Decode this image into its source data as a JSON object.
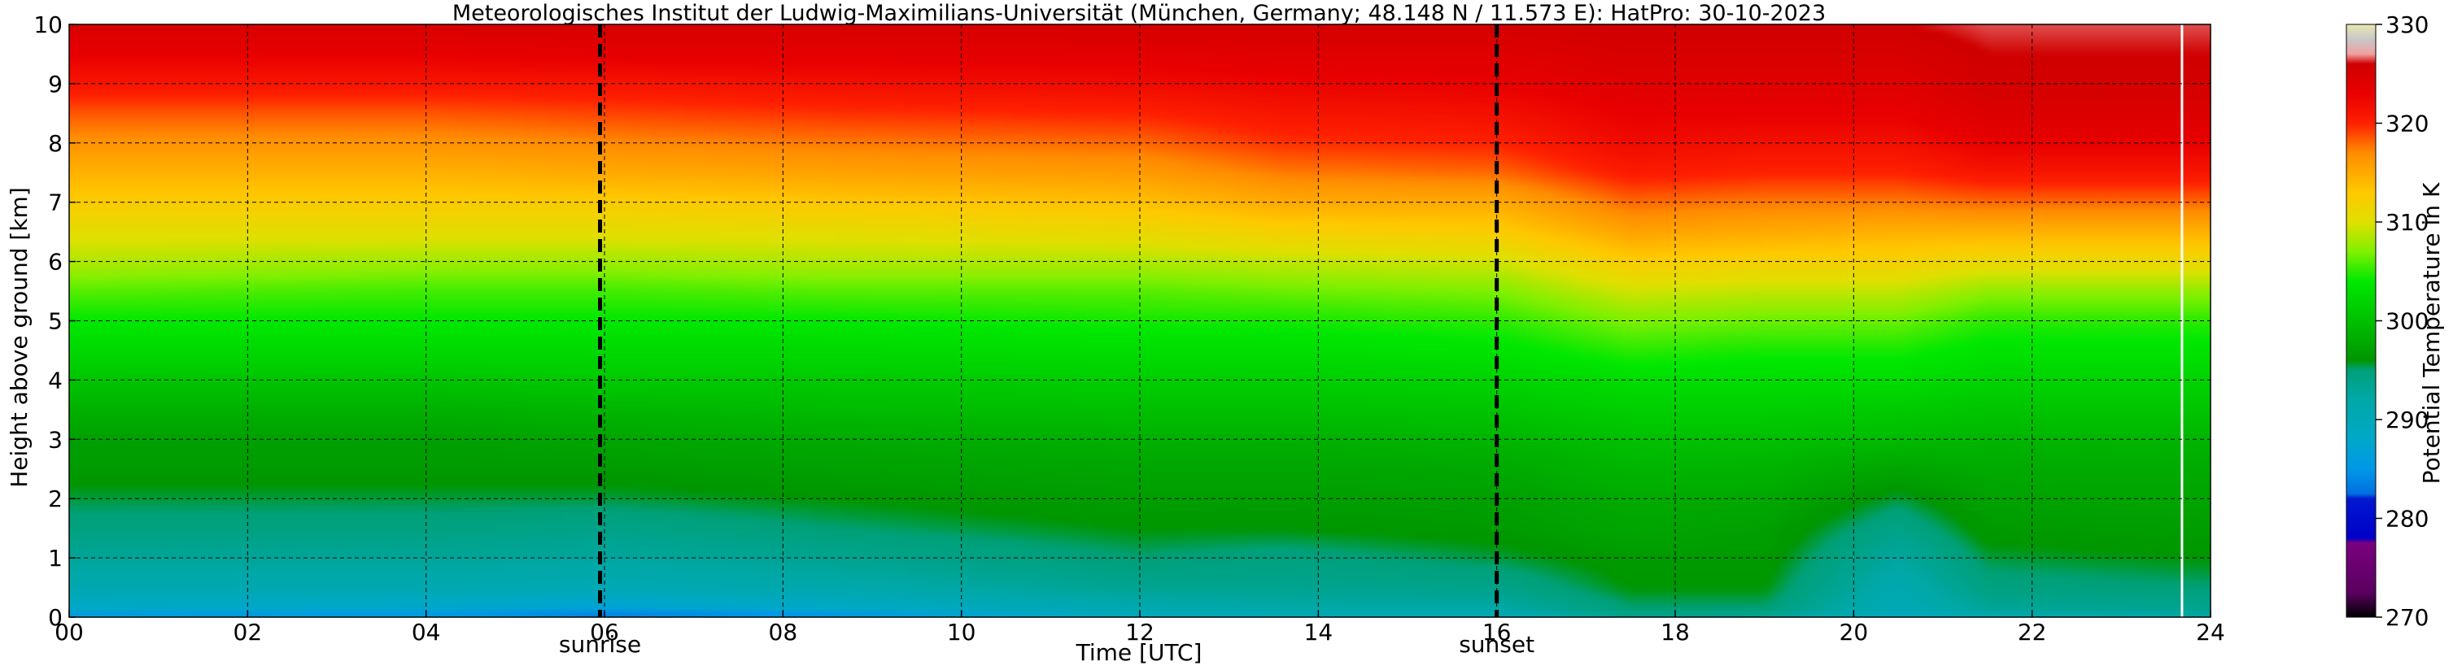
{
  "chart_data": {
    "type": "heatmap",
    "title": "Meteorologisches Institut der Ludwig-Maximilians-Universität (München, Germany; 48.148 N / 11.573 E):    HatPro: 30-10-2023",
    "xlabel": "Time [UTC]",
    "ylabel": "Height above ground [km]",
    "xlim": [
      0,
      24
    ],
    "ylim": [
      0,
      10
    ],
    "x_ticks": [
      0,
      2,
      4,
      6,
      8,
      10,
      12,
      14,
      16,
      18,
      20,
      22,
      24
    ],
    "x_tick_labels": [
      "00",
      "02",
      "04",
      "06",
      "08",
      "10",
      "12",
      "14",
      "16",
      "18",
      "20",
      "22",
      "24"
    ],
    "y_ticks": [
      0,
      1,
      2,
      3,
      4,
      5,
      6,
      7,
      8,
      9,
      10
    ],
    "y_tick_labels": [
      "0",
      "1",
      "2",
      "3",
      "4",
      "5",
      "6",
      "7",
      "8",
      "9",
      "10"
    ],
    "grid": true,
    "colorbar": {
      "label": "Potential Temperature in K",
      "min": 270,
      "max": 330,
      "ticks": [
        270,
        280,
        290,
        300,
        310,
        320,
        330
      ],
      "tick_labels": [
        "270",
        "280",
        "290",
        "300",
        "310",
        "320",
        "330"
      ],
      "stops": [
        {
          "value": 270,
          "color": "#000000"
        },
        {
          "value": 272.5,
          "color": "#5a0060"
        },
        {
          "value": 277.5,
          "color": "#7a0080"
        },
        {
          "value": 278,
          "color": "#0000c8"
        },
        {
          "value": 282,
          "color": "#0018d0"
        },
        {
          "value": 282.5,
          "color": "#0070e0"
        },
        {
          "value": 285,
          "color": "#0098e8"
        },
        {
          "value": 288,
          "color": "#00a8c8"
        },
        {
          "value": 292,
          "color": "#00a8a8"
        },
        {
          "value": 295,
          "color": "#00a078"
        },
        {
          "value": 296,
          "color": "#009600"
        },
        {
          "value": 300,
          "color": "#00c000"
        },
        {
          "value": 304,
          "color": "#00e800"
        },
        {
          "value": 307,
          "color": "#80f000"
        },
        {
          "value": 310,
          "color": "#e0e000"
        },
        {
          "value": 313,
          "color": "#ffc800"
        },
        {
          "value": 317,
          "color": "#ff8c00"
        },
        {
          "value": 320,
          "color": "#ff2000"
        },
        {
          "value": 323,
          "color": "#e80000"
        },
        {
          "value": 326,
          "color": "#d00000"
        },
        {
          "value": 327,
          "color": "#f0a0a0"
        },
        {
          "value": 328.5,
          "color": "#c8c8c8"
        },
        {
          "value": 330,
          "color": "#e8e8b0"
        }
      ]
    },
    "events": [
      {
        "label": "sunrise",
        "time": 5.95
      },
      {
        "label": "sunset",
        "time": 16.0
      }
    ],
    "no_data_time": 23.68,
    "field": {
      "description": "Potential temperature (K) by time (h UTC) and height (km)",
      "profile_heights": [
        0,
        0.15,
        0.5,
        1.0,
        1.5,
        2.0,
        2.5,
        3.0,
        3.5,
        4.0,
        4.5,
        5.0,
        5.5,
        6.0,
        6.5,
        7.0,
        7.5,
        8.0,
        8.5,
        9.0,
        9.5,
        10.0
      ],
      "profiles": [
        {
          "time": 0,
          "theta": [
            285,
            288,
            291,
            293,
            294.5,
            295.5,
            296.5,
            297,
            298.5,
            300.5,
            302.5,
            304,
            306,
            308.5,
            310.5,
            312.5,
            314.5,
            316.5,
            318.5,
            321,
            323,
            325
          ]
        },
        {
          "time": 4,
          "theta": [
            284.5,
            287.5,
            291,
            293,
            294.5,
            295.5,
            296.5,
            297,
            298.5,
            300.5,
            302.5,
            304,
            305.5,
            308,
            310.5,
            312.5,
            314.5,
            316.5,
            318.5,
            321,
            323,
            325
          ]
        },
        {
          "time": 6,
          "theta": [
            282.5,
            286.5,
            290.5,
            292.5,
            294,
            295.5,
            296.5,
            297.5,
            299,
            301,
            302.5,
            304,
            305.5,
            308,
            310.5,
            312.5,
            315,
            317,
            319,
            321,
            323.5,
            325
          ]
        },
        {
          "time": 8.5,
          "theta": [
            284,
            288,
            291.5,
            293.5,
            295,
            296,
            297,
            298,
            299.5,
            301,
            302.5,
            304,
            306,
            308.5,
            310.5,
            313,
            315.5,
            317.5,
            319.5,
            321.5,
            323.5,
            325
          ]
        },
        {
          "time": 12,
          "theta": [
            289,
            291,
            293.5,
            295,
            296,
            296.8,
            297.5,
            298.5,
            300,
            301.5,
            303,
            304.5,
            306,
            308.5,
            311,
            313.5,
            316,
            318,
            320,
            322,
            323.5,
            325.5
          ]
        },
        {
          "time": 13.6,
          "theta": [
            290,
            292,
            293.5,
            294.5,
            296,
            296.8,
            297.5,
            298.5,
            300,
            301.5,
            303,
            304.5,
            306.5,
            309,
            312,
            315,
            317.5,
            319.5,
            321,
            322.5,
            324,
            325.5
          ]
        },
        {
          "time": 16,
          "theta": [
            290,
            292,
            294,
            295.5,
            296.5,
            297,
            297.8,
            299,
            300.5,
            302,
            303.5,
            305,
            307,
            309.5,
            312.5,
            315,
            318,
            320,
            321.5,
            323,
            324,
            325.5
          ]
        },
        {
          "time": 17.5,
          "theta": [
            293.5,
            295,
            296,
            296.5,
            297.5,
            298,
            299,
            300,
            301.5,
            303,
            305,
            307,
            309.5,
            312.5,
            315.5,
            318,
            320.5,
            322,
            323,
            324,
            325,
            326
          ]
        },
        {
          "time": 19,
          "theta": [
            293,
            295,
            296,
            296.5,
            297,
            297.8,
            298.8,
            300,
            301.5,
            303,
            304.5,
            306.5,
            309,
            312,
            315,
            317.5,
            320,
            321.5,
            323,
            324,
            325,
            326
          ]
        },
        {
          "time": 20.5,
          "theta": [
            289,
            290,
            291,
            292.5,
            294,
            295.5,
            297.5,
            299.5,
            301,
            303,
            304.5,
            306.5,
            309,
            312,
            314.5,
            317.5,
            320,
            321.5,
            323,
            324,
            325,
            326
          ]
        },
        {
          "time": 21.5,
          "theta": [
            291,
            293,
            294.5,
            295.5,
            296.5,
            297.2,
            298,
            299,
            300.5,
            302,
            303.5,
            305,
            307.5,
            311,
            314.5,
            318,
            321,
            323,
            324.5,
            325.5,
            326,
            326.5
          ]
        },
        {
          "time": 24,
          "theta": [
            292,
            293.5,
            295,
            296,
            296.8,
            297.5,
            298,
            299,
            300.5,
            302,
            303.5,
            305,
            307.5,
            311,
            314.5,
            318,
            321,
            323,
            324.5,
            325.5,
            326,
            326.5
          ]
        }
      ]
    }
  }
}
